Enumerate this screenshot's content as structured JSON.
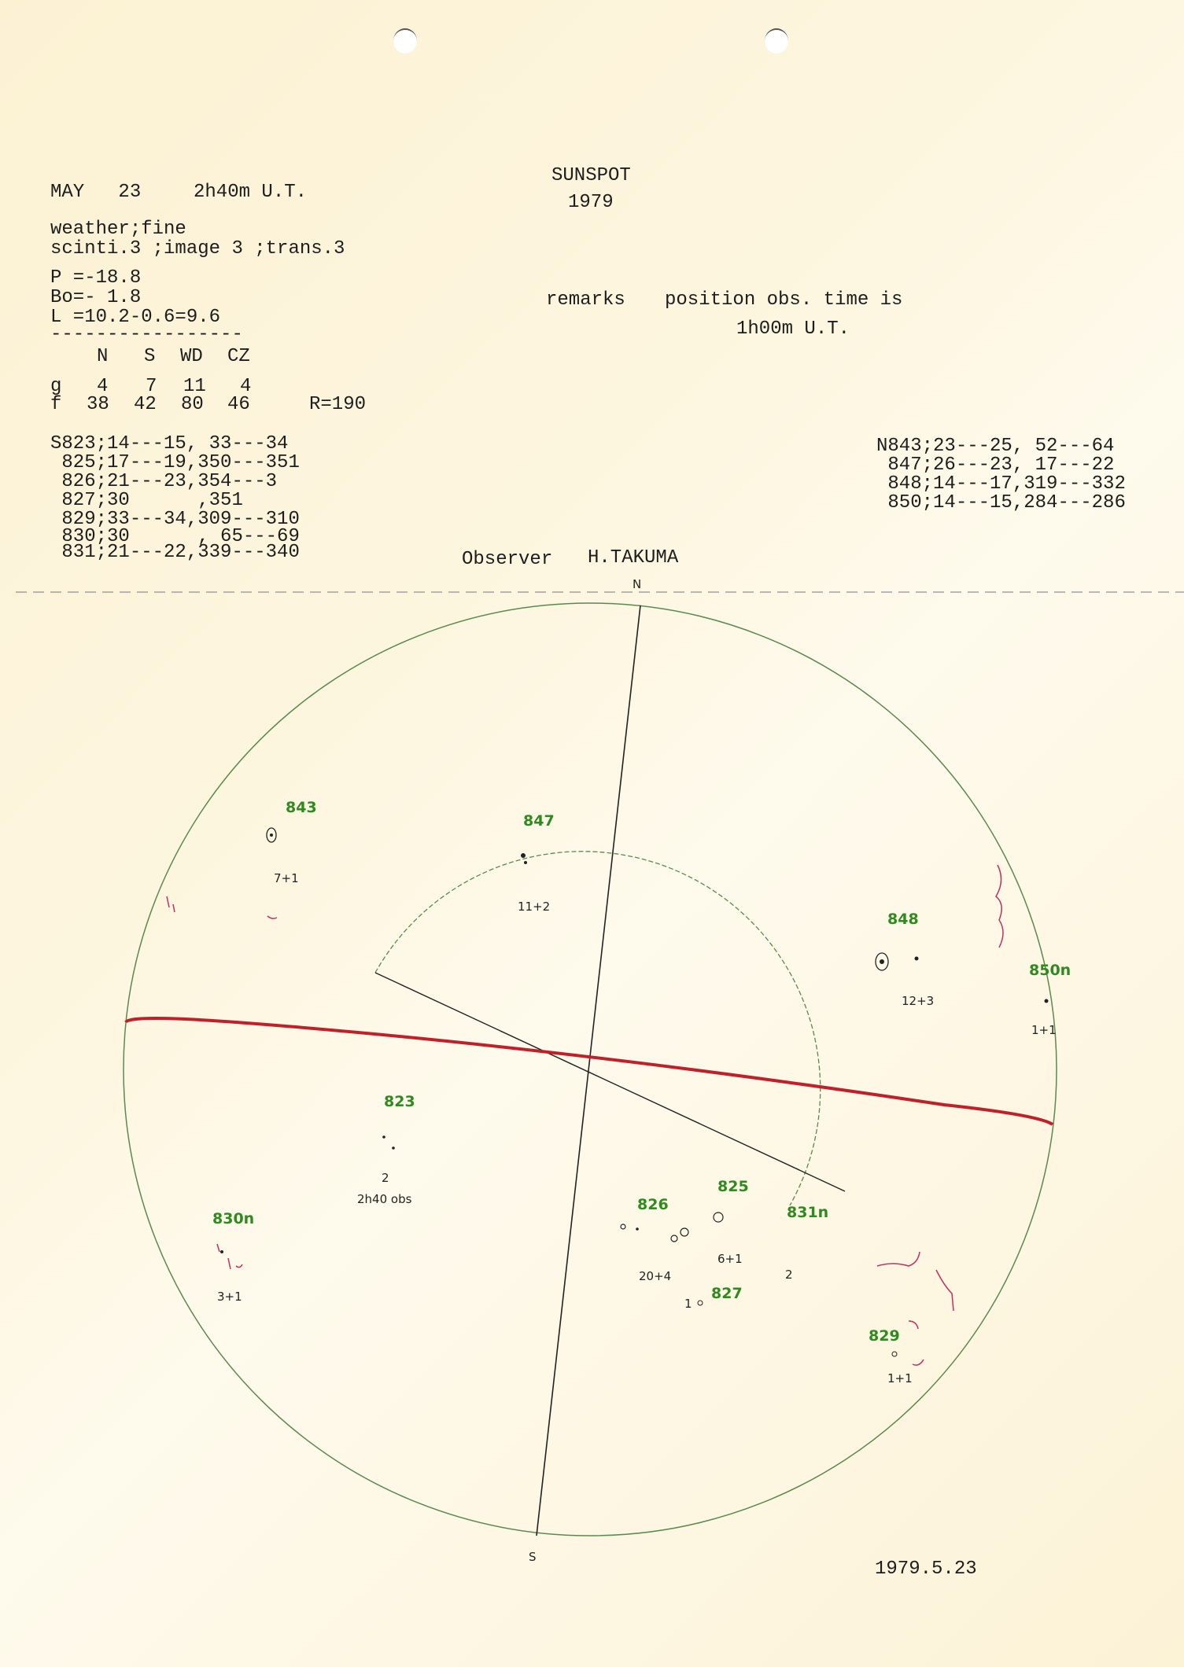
{
  "header": {
    "date": "MAY   23",
    "time": "2h40m U.T.",
    "title": "SUNSPOT",
    "year": "1979",
    "weather": "weather;fine",
    "conditions": "scinti.3 ;image 3 ;trans.3",
    "p_angle": "P =-18.8",
    "b0": "Bo=- 1.8",
    "l": "L =10.2-0.6=9.6",
    "divider": "-----------------",
    "remarks_label": "remarks",
    "remarks_text": "position obs. time is",
    "remarks_time": "1h00m U.T."
  },
  "counts": {
    "columns": [
      "N",
      "S",
      "WD",
      "CZ"
    ],
    "g_label": "g",
    "g": [
      "4",
      "7",
      "11",
      "4"
    ],
    "f_label": "f",
    "f": [
      "38",
      "42",
      "80",
      "46"
    ],
    "r": "R=190"
  },
  "south_groups": [
    "S823;14---15, 33---34",
    " 825;17---19,350---351",
    " 826;21---23,354---3",
    " 827;30      ,351",
    " 829;33---34,309---310",
    " 830;30      , 65---69",
    " 831;21---22,339---340"
  ],
  "north_groups": [
    "N843;23---25, 52---64",
    " 847;26---23, 17---22",
    " 848;14---17,319---332",
    " 850;14---15,284---286"
  ],
  "observer": {
    "label": "Observer",
    "name": "H.TAKUMA"
  },
  "footer_date": "1979.5.23",
  "disc": {
    "north_mark": "N",
    "south_mark": "S",
    "group_labels": [
      "843",
      "847",
      "848",
      "850n",
      "823",
      "825",
      "826",
      "831n",
      "827",
      "829",
      "830n"
    ],
    "spot_counts": [
      "7+1",
      "11+2",
      "12+3",
      "1+1",
      "2",
      "2h40 obs",
      "3+1",
      "20+4",
      "6+1",
      "2",
      "1",
      "1+1"
    ],
    "colors": {
      "label": "#2f8a1f",
      "equator": "#c0202a",
      "faculae": "#c23060",
      "limb": "#5a8a50",
      "ink": "#222222"
    }
  }
}
